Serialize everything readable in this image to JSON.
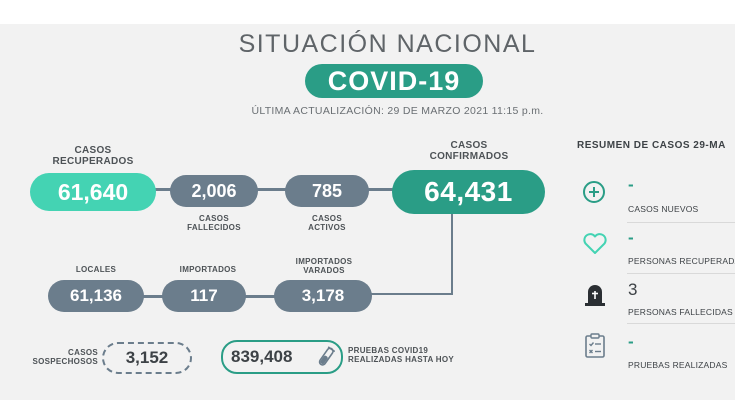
{
  "header": {
    "title": "SITUACIÓN NACIONAL",
    "badge": "COVID-19",
    "updated": "ÚLTIMA ACTUALIZACIÓN: 29 DE MARZO 2021 11:15 p.m."
  },
  "stats": {
    "recuperados": {
      "label_1": "CASOS",
      "label_2": "RECUPERADOS",
      "value": "61,640"
    },
    "fallecidos": {
      "label_1": "CASOS",
      "label_2": "FALLECIDOS",
      "value": "2,006"
    },
    "activos": {
      "label_1": "CASOS",
      "label_2": "ACTIVOS",
      "value": "785"
    },
    "confirmados": {
      "label_1": "CASOS",
      "label_2": "CONFIRMADOS",
      "value": "64,431"
    },
    "locales": {
      "label": "LOCALES",
      "value": "61,136"
    },
    "importados": {
      "label": "IMPORTADOS",
      "value": "117"
    },
    "varados": {
      "label_1": "IMPORTADOS",
      "label_2": "VARADOS",
      "value": "3,178"
    },
    "sospechosos": {
      "label_1": "CASOS",
      "label_2": "SOSPECHOSOS",
      "value": "3,152"
    },
    "pruebas": {
      "label_1": "PRUEBAS COVID19",
      "label_2": "REALIZADAS HASTA HOY",
      "value": "839,408"
    }
  },
  "summary": {
    "title": "RESUMEN DE CASOS 29-MA",
    "items": [
      {
        "icon": "plus-circle-icon",
        "value": "-",
        "label": "CASOS NUEVOS"
      },
      {
        "icon": "heart-icon",
        "value": "-",
        "label": "PERSONAS RECUPERADA"
      },
      {
        "icon": "tombstone-icon",
        "value": "3",
        "label": "PERSONAS FALLECIDAS"
      },
      {
        "icon": "clipboard-icon",
        "value": "-",
        "label": "PRUEBAS REALIZADAS"
      }
    ]
  },
  "colors": {
    "teal": "#2a9d86",
    "mint": "#44d3b3",
    "slate": "#6b7d8c",
    "background": "#f2f2f2"
  }
}
